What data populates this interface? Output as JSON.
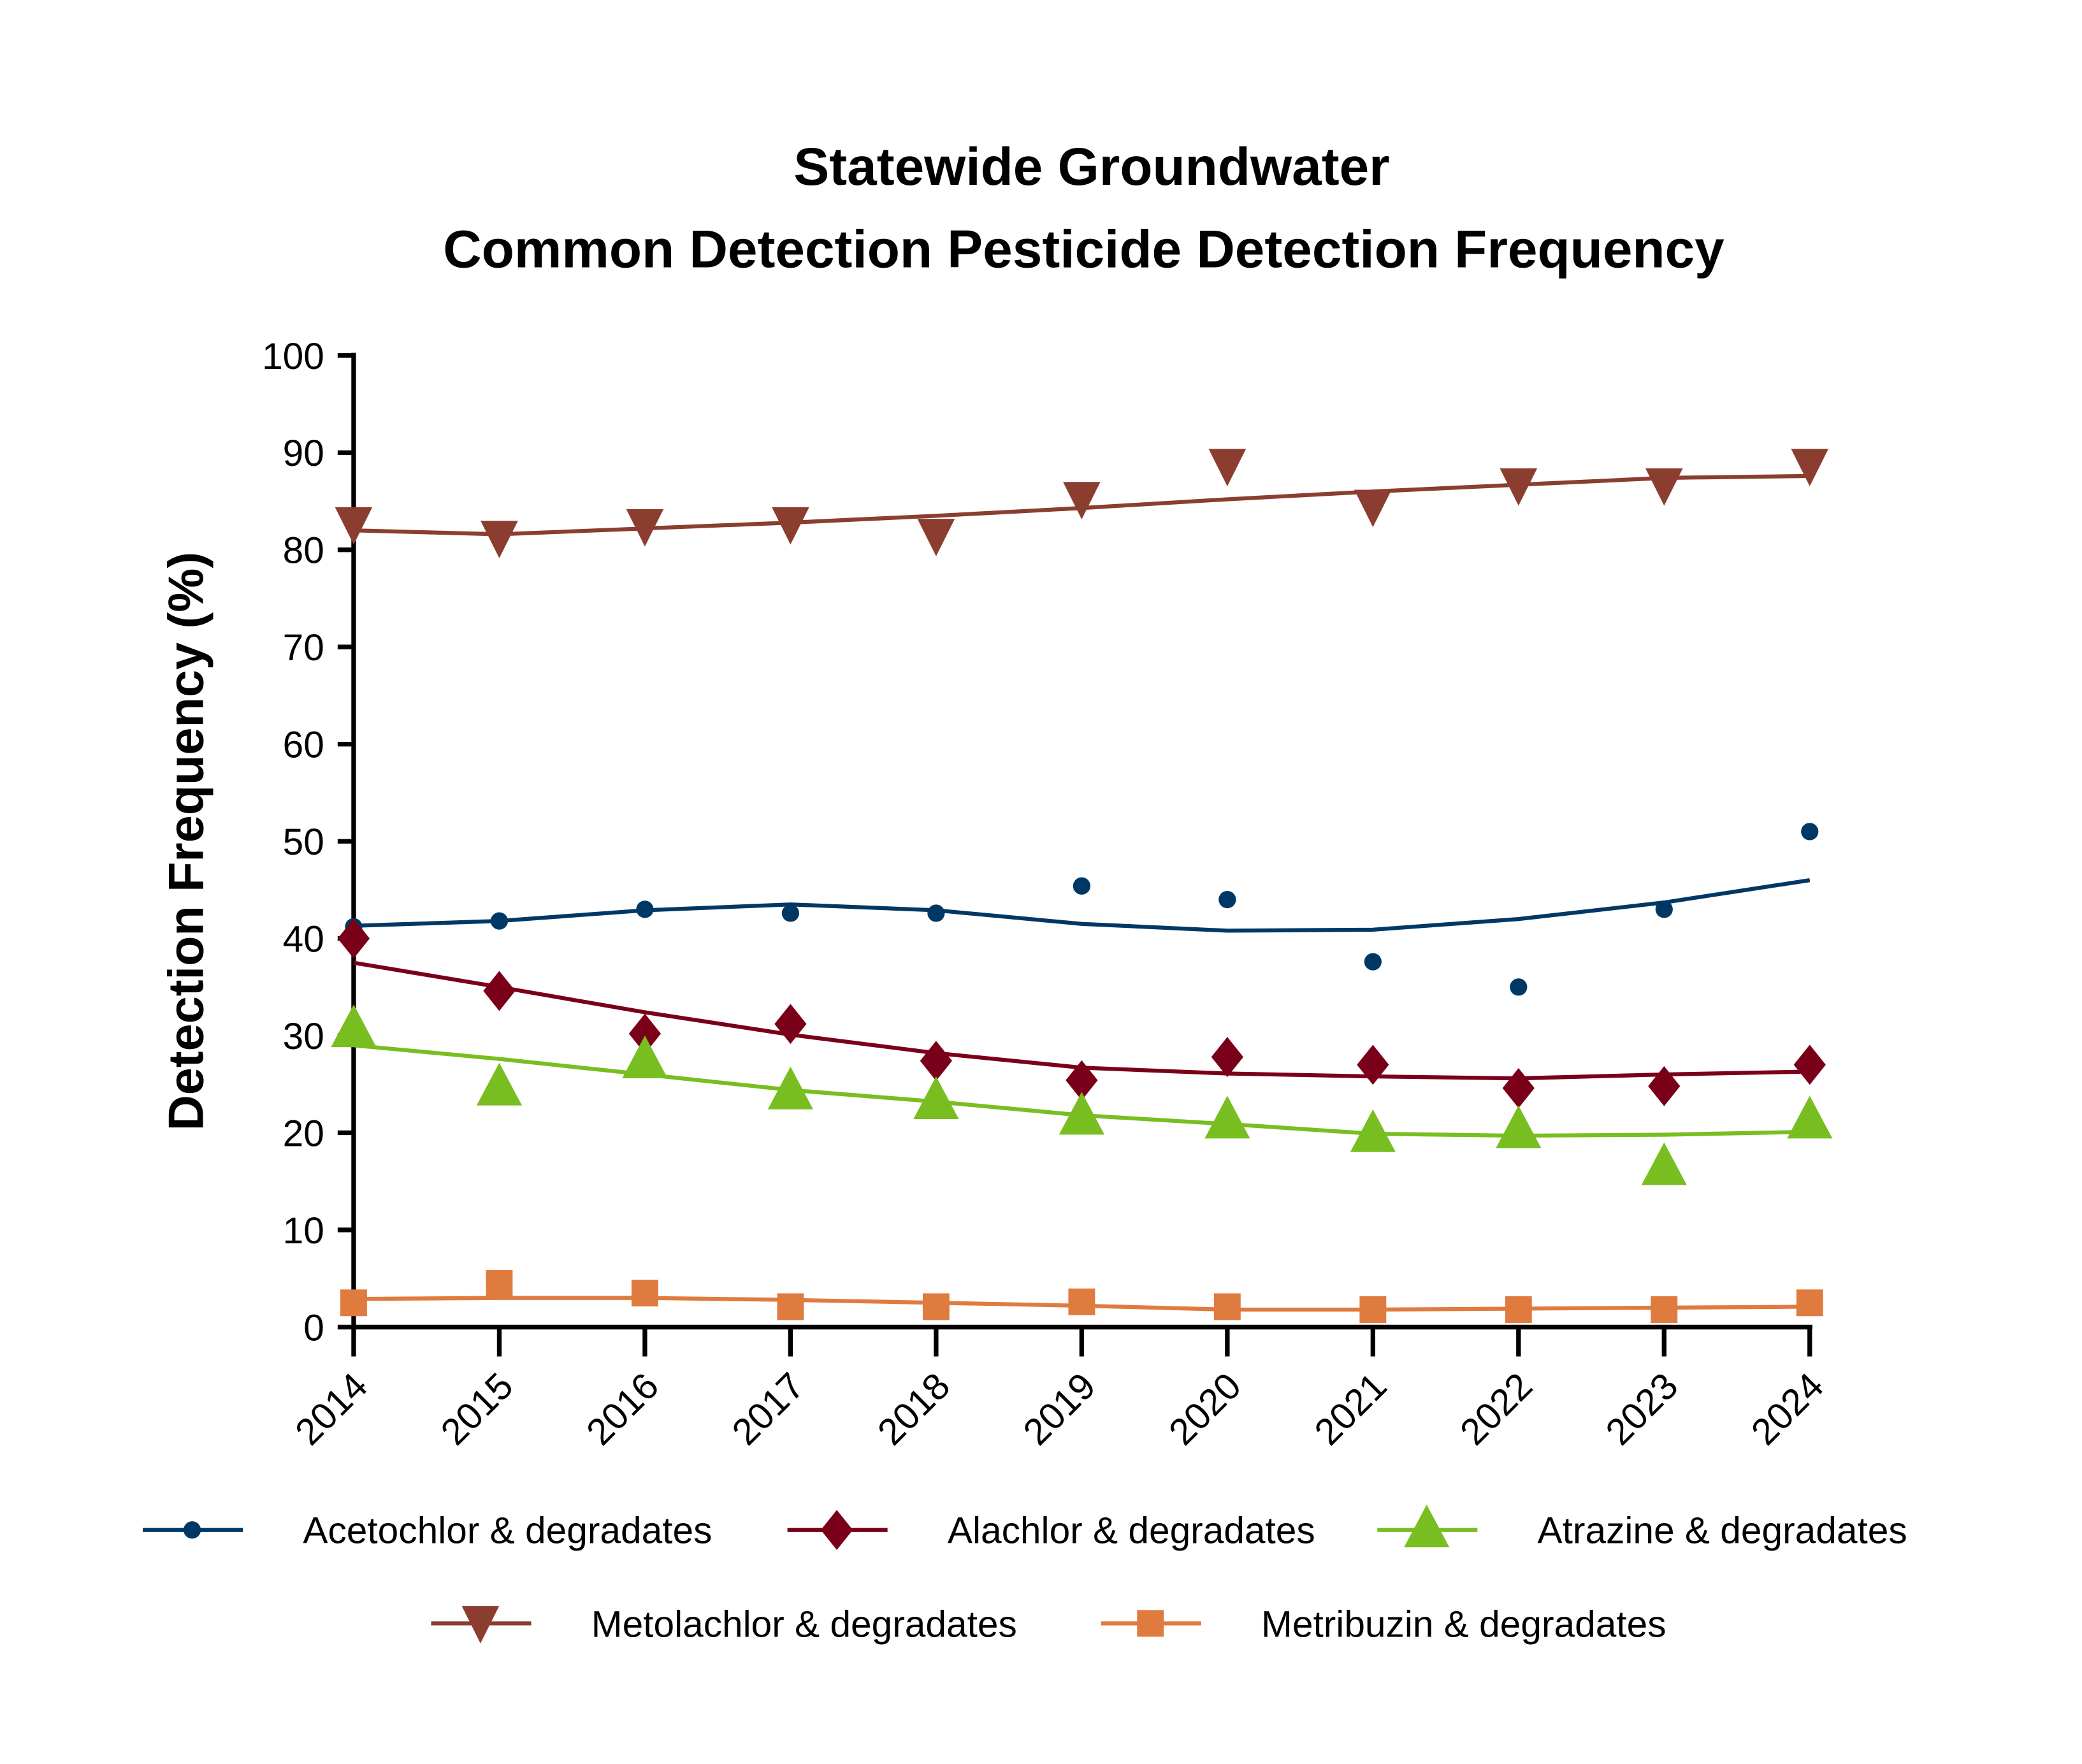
{
  "chart_data": {
    "type": "line",
    "title": [
      "Statewide Groundwater",
      "Common Detection Pesticide Detection Frequency"
    ],
    "xlabel": "",
    "ylabel": "Detection Frequency (%)",
    "ylim": [
      0,
      100
    ],
    "yticks": [
      0,
      10,
      20,
      30,
      40,
      50,
      60,
      70,
      80,
      90,
      100
    ],
    "x": [
      "2014",
      "2015",
      "2016",
      "2017",
      "2018",
      "2019",
      "2020",
      "2021",
      "2022",
      "2023",
      "2024"
    ],
    "grid": false,
    "legend_position": "bottom",
    "series": [
      {
        "name": "Acetochlor & degradates",
        "marker": "circle",
        "color": "#003865",
        "values": [
          41.2,
          41.8,
          43.0,
          42.6,
          42.6,
          45.4,
          44.0,
          37.6,
          35.0,
          43.0,
          51.0
        ],
        "trend": [
          41.3,
          41.8,
          42.9,
          43.5,
          42.9,
          41.5,
          40.8,
          40.9,
          42.0,
          43.7,
          46.0
        ]
      },
      {
        "name": "Alachlor & degradates",
        "marker": "diamond",
        "color": "#7a0019",
        "values": [
          40.0,
          34.6,
          30.2,
          31.2,
          27.4,
          25.4,
          27.8,
          27.0,
          24.6,
          24.8,
          27.0
        ],
        "trend": [
          37.5,
          35.0,
          32.4,
          30.1,
          28.2,
          26.7,
          26.1,
          25.8,
          25.6,
          26.0,
          26.3
        ]
      },
      {
        "name": "Atrazine & degradates",
        "marker": "triangle-up",
        "color": "#78be20",
        "values": [
          30.6,
          24.6,
          27.4,
          24.2,
          23.2,
          21.6,
          21.2,
          19.8,
          20.2,
          16.4,
          21.2
        ],
        "trend": [
          29.0,
          27.6,
          26.0,
          24.4,
          23.2,
          21.8,
          20.9,
          19.9,
          19.7,
          19.8,
          20.1
        ]
      },
      {
        "name": "Metolachlor & degradates",
        "marker": "triangle-down",
        "color": "#8b3e2f",
        "values": [
          82.6,
          81.2,
          82.4,
          82.6,
          81.4,
          85.2,
          88.6,
          84.4,
          86.6,
          86.6,
          88.6
        ],
        "trend": [
          82.0,
          81.6,
          82.2,
          82.8,
          83.5,
          84.3,
          85.2,
          86.0,
          86.7,
          87.4,
          87.6
        ]
      },
      {
        "name": "Metribuzin & degradates",
        "marker": "square",
        "color": "#e07b3f",
        "values": [
          2.5,
          4.5,
          3.5,
          2.1,
          2.1,
          2.6,
          2.1,
          1.8,
          1.8,
          1.8,
          2.5
        ],
        "trend": [
          2.9,
          3.0,
          3.0,
          2.8,
          2.5,
          2.2,
          1.8,
          1.8,
          1.9,
          2.0,
          2.1
        ]
      }
    ]
  }
}
